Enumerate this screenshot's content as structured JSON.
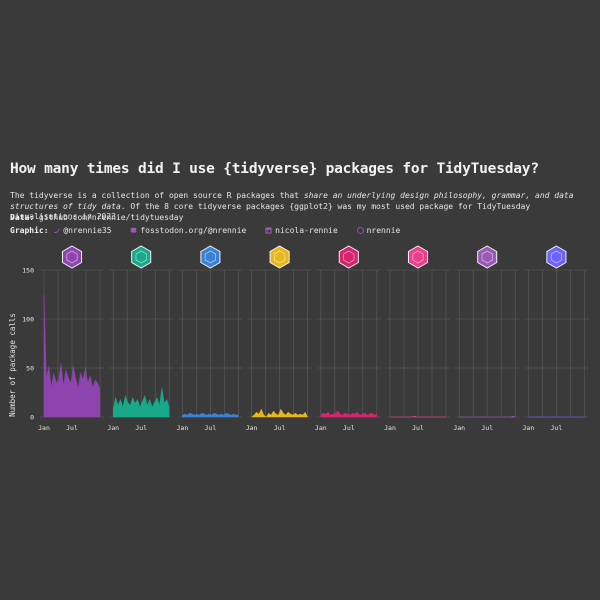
{
  "title": "How many times did I use {tidyverse} packages for TidyTuesday?",
  "subtitle": {
    "part1": "The tidyverse is a collection of open source R packages that ",
    "part2_italic": "share an underlying design philosophy, grammar, and data structures of tidy data",
    "part3": ". Of the 8 core tidyverse packages {ggplot2} was my most used package for TidyTuesday visualisations in 2023."
  },
  "data_line": {
    "label": "Data:",
    "value": "github.com/nrennie/tidytuesday"
  },
  "graphic_line": {
    "label": "Graphic:",
    "items": [
      {
        "icon": "twitter-icon",
        "text": "@nrennie35"
      },
      {
        "icon": "mastodon-icon",
        "text": "fosstodon.org/@nrennie"
      },
      {
        "icon": "linkedin-icon",
        "text": "nicola-rennie"
      },
      {
        "icon": "github-icon",
        "text": "nrennie"
      }
    ],
    "icon_color": "#9b59b6"
  },
  "colors": {
    "background": "#3a3a3a",
    "grid": "#5e5e5e",
    "text": "#e6e6e6"
  },
  "chart_data": {
    "type": "area",
    "facets": "one panel per package, shared y axis",
    "ylabel": "Number of package calls",
    "xlabel": "",
    "ylim": [
      0,
      150
    ],
    "yticks": [
      0,
      50,
      100,
      150
    ],
    "xticks": [
      "Jan",
      "Jul"
    ],
    "grid": true,
    "x": [
      "Jan",
      "Jan",
      "Feb",
      "Feb",
      "Mar",
      "Mar",
      "Apr",
      "Apr",
      "May",
      "May",
      "Jun",
      "Jun",
      "Jul",
      "Jul",
      "Aug",
      "Aug",
      "Sep",
      "Sep",
      "Oct",
      "Oct",
      "Nov",
      "Nov",
      "Dec",
      "Dec"
    ],
    "series": [
      {
        "color": "#8e44ad",
        "hex_icon": "ggplot2-hex",
        "values": [
          125,
          40,
          52,
          30,
          45,
          35,
          38,
          55,
          32,
          48,
          40,
          35,
          52,
          40,
          30,
          45,
          38,
          50,
          35,
          42,
          30,
          38,
          35,
          28
        ]
      },
      {
        "color": "#17a98a",
        "hex_icon": "dplyr-hex",
        "values": [
          8,
          20,
          12,
          18,
          10,
          22,
          15,
          12,
          20,
          14,
          18,
          10,
          16,
          22,
          12,
          18,
          10,
          15,
          20,
          12,
          30,
          14,
          18,
          10
        ]
      },
      {
        "color": "#3b82d4",
        "hex_icon": "readr-hex",
        "values": [
          2,
          3,
          2,
          4,
          3,
          2,
          3,
          2,
          4,
          3,
          2,
          3,
          2,
          4,
          3,
          2,
          3,
          2,
          4,
          3,
          2,
          3,
          2,
          2
        ]
      },
      {
        "color": "#e8b71a",
        "hex_icon": "tidyr-hex",
        "values": [
          0,
          2,
          5,
          3,
          8,
          2,
          0,
          4,
          2,
          6,
          3,
          2,
          8,
          4,
          2,
          5,
          3,
          2,
          4,
          2,
          3,
          2,
          5,
          0
        ]
      },
      {
        "color": "#d6246e",
        "hex_icon": "purrr-hex",
        "values": [
          2,
          4,
          3,
          5,
          2,
          3,
          4,
          6,
          3,
          2,
          4,
          3,
          2,
          4,
          3,
          5,
          2,
          3,
          4,
          2,
          3,
          4,
          2,
          3
        ]
      },
      {
        "color": "#ec3d8c",
        "hex_icon": "tibble-hex",
        "values": [
          0,
          0,
          0,
          0,
          0,
          0,
          0,
          0,
          0,
          0,
          1,
          0,
          0,
          0,
          0,
          0,
          0,
          0,
          0,
          0,
          0,
          0,
          0,
          0
        ]
      },
      {
        "color": "#9b59b6",
        "hex_icon": "stringr-hex",
        "values": [
          0,
          0,
          0,
          0,
          0,
          0,
          0,
          0,
          0,
          0,
          0,
          0,
          0,
          0,
          0,
          0,
          0,
          0,
          0,
          0,
          0,
          0,
          1,
          0
        ]
      },
      {
        "color": "#6c63ff",
        "hex_icon": "forcats-hex",
        "values": [
          0,
          0,
          0,
          0,
          0,
          0,
          0,
          0,
          0,
          0,
          0,
          0,
          0,
          0,
          0,
          0,
          0,
          0,
          0,
          0,
          0,
          0,
          0,
          0
        ]
      }
    ]
  }
}
